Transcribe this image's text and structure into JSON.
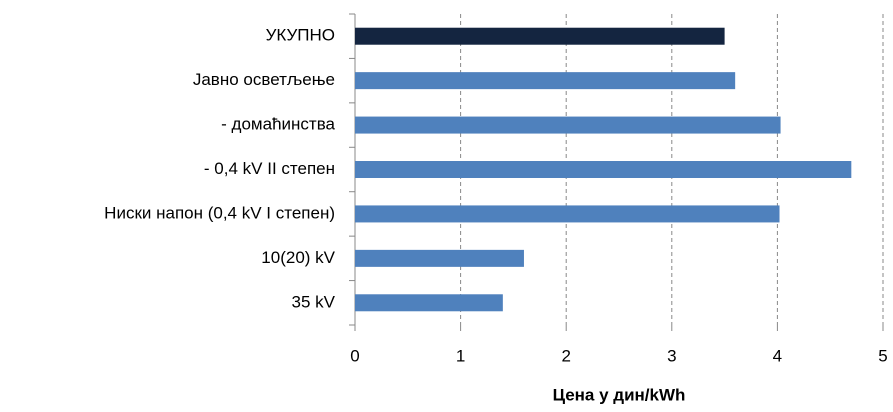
{
  "chart_data": {
    "type": "barh",
    "categories": [
      "УКУПНО",
      "Јавно осветљење",
      "- домаћинства",
      "- 0,4 kV II степен",
      "Ниски напон (0,4 kV I степен)",
      "10(20) kV",
      "35 kV"
    ],
    "values": [
      3.5,
      3.6,
      4.03,
      4.7,
      4.02,
      1.6,
      1.4
    ],
    "colors": [
      "#142540",
      "#4f81bd",
      "#4f81bd",
      "#4f81bd",
      "#4f81bd",
      "#4f81bd",
      "#4f81bd"
    ],
    "xlabel": "Цена у дин/kWh",
    "xlim": [
      0,
      5
    ],
    "xticks": [
      0,
      1,
      2,
      3,
      4,
      5
    ],
    "grid": true
  }
}
